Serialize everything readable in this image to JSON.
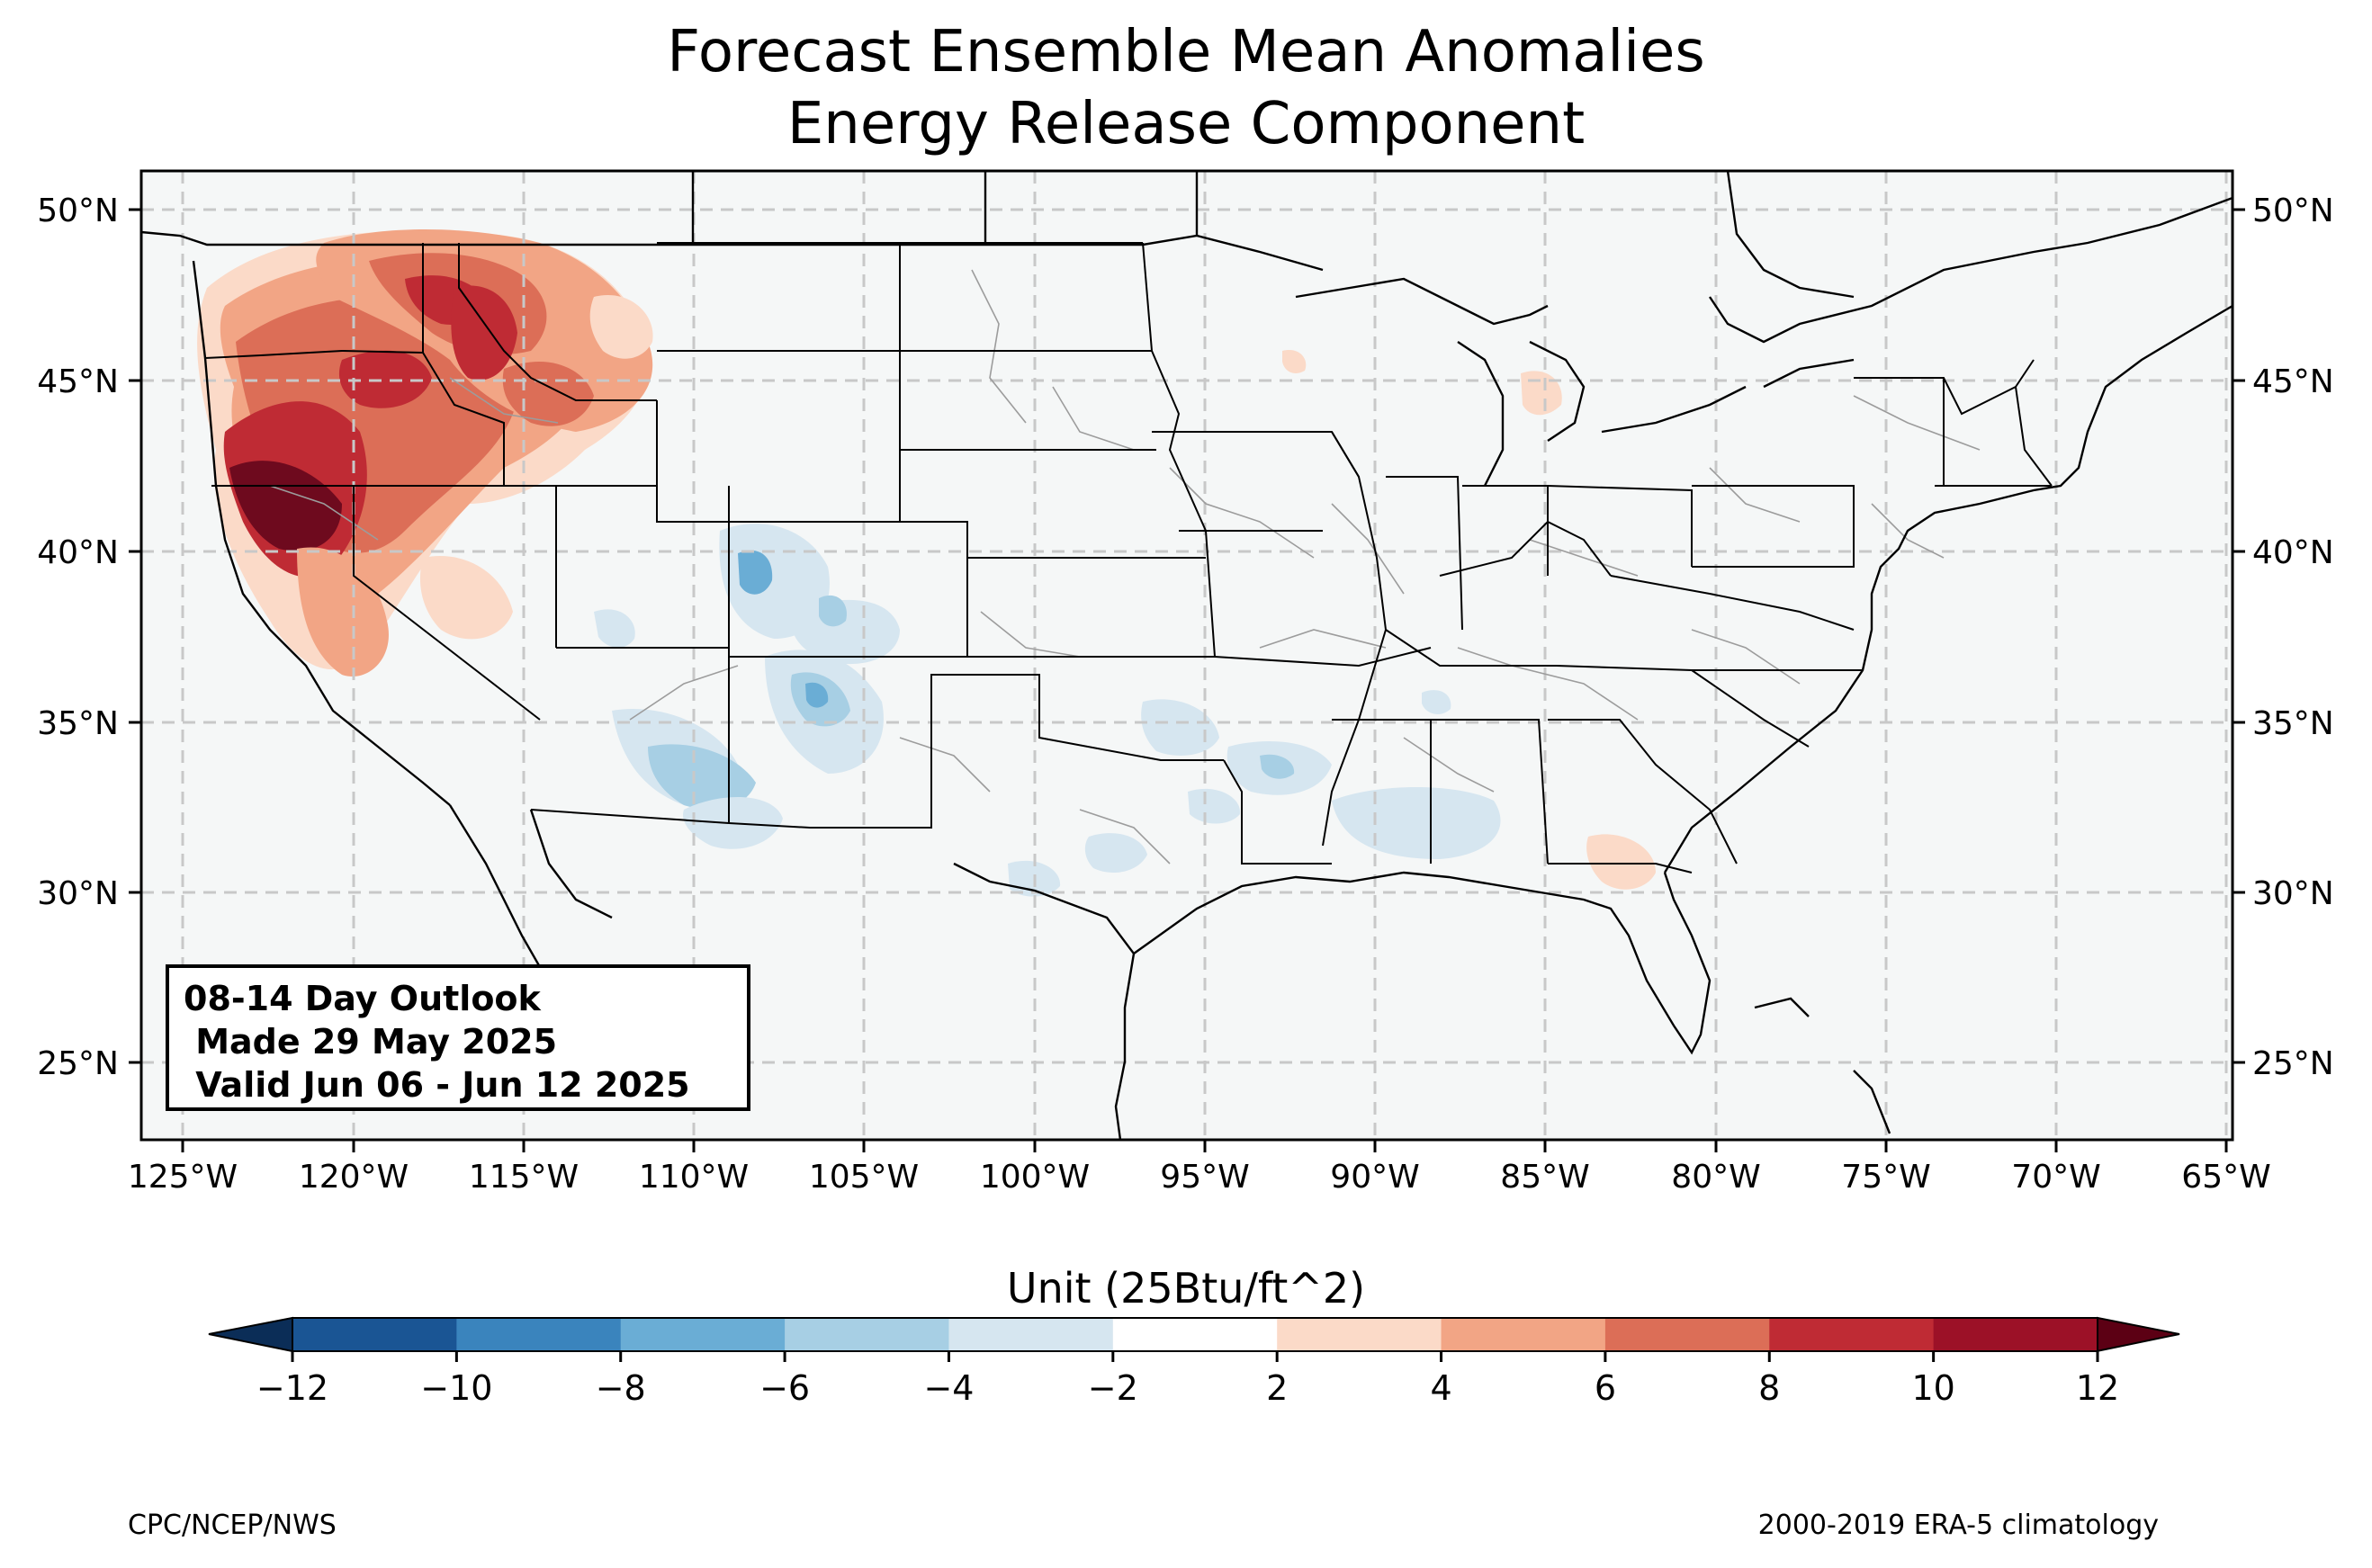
{
  "title": {
    "line1": "Forecast Ensemble Mean Anomalies",
    "line2": "Energy Release Component"
  },
  "info_box": {
    "line1": "08-14 Day Outlook",
    "line2": " Made 29 May 2025",
    "line3": " Valid Jun 06 - Jun 12 2025"
  },
  "colorbar": {
    "title": "Unit (25Btu/ft^2)",
    "ticks": [
      "−12",
      "−10",
      "−8",
      "−6",
      "−4",
      "−2",
      "2",
      "4",
      "6",
      "8",
      "10",
      "12"
    ],
    "colors": [
      "#1a5594",
      "#3a84bd",
      "#6aadd5",
      "#a7cfe4",
      "#d6e6f0",
      "#ffffff",
      "#fbdac8",
      "#f2a585",
      "#dc6e57",
      "#bf2b34",
      "#9c1127"
    ],
    "under_color": "#0b2d57",
    "over_color": "#5c0014"
  },
  "axes": {
    "lon_labels": [
      "125°W",
      "120°W",
      "115°W",
      "110°W",
      "105°W",
      "100°W",
      "95°W",
      "90°W",
      "85°W",
      "80°W",
      "75°W",
      "70°W",
      "65°W"
    ],
    "lat_labels": [
      "50°N",
      "45°N",
      "40°N",
      "35°N",
      "30°N",
      "25°N"
    ]
  },
  "map_colors": {
    "ocean": "#f5f7f7",
    "land": "#f5f7f7",
    "anomaly_strong_pos": "#6e0a1e",
    "anomaly_pos": "#bf2b34",
    "anomaly_mid_pos": "#dc6e57",
    "anomaly_weak_pos": "#f2a585",
    "anomaly_faint_pos": "#fbdac8",
    "anomaly_faint_neg": "#d6e6f0",
    "anomaly_weak_neg": "#a7cfe4",
    "anomaly_mid_neg": "#6aadd5"
  },
  "footer": {
    "left": "CPC/NCEP/NWS",
    "right": "2000-2019 ERA-5 climatology"
  }
}
